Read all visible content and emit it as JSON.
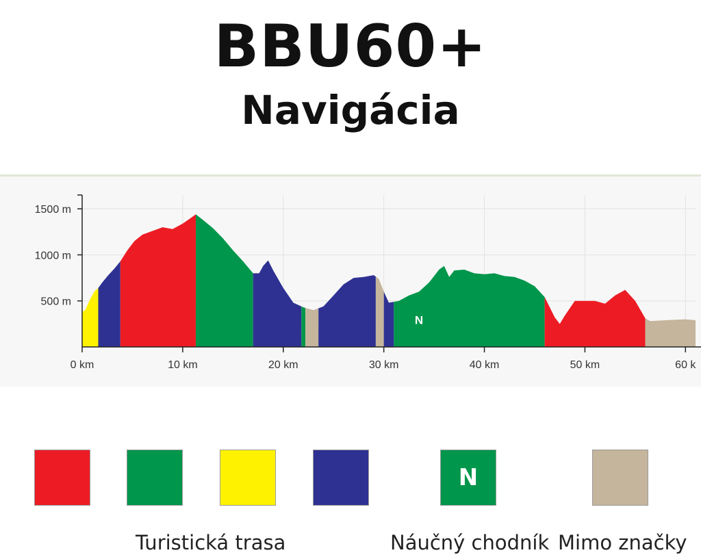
{
  "header": {
    "title": "BBU60+",
    "subtitle": "Navigácia"
  },
  "colors": {
    "red": "#ed1c24",
    "green": "#00964b",
    "yellow": "#fff200",
    "blue": "#2e3192",
    "tan": "#c4b59c"
  },
  "chart_data": {
    "type": "area",
    "xlabel": "",
    "ylabel": "",
    "x_ticks": [
      "0 km",
      "10 km",
      "20 km",
      "30 km",
      "40 km",
      "50 km",
      "60 k"
    ],
    "y_ticks": [
      "500 m",
      "1000 m",
      "1500 m"
    ],
    "xlim": [
      0,
      61
    ],
    "ylim": [
      0,
      1650
    ],
    "grid": true,
    "profile": [
      [
        0,
        380
      ],
      [
        0.3,
        400
      ],
      [
        0.8,
        520
      ],
      [
        1.2,
        600
      ],
      [
        1.6,
        640
      ],
      [
        2.0,
        700
      ],
      [
        2.6,
        780
      ],
      [
        3.2,
        850
      ],
      [
        3.8,
        930
      ],
      [
        4.5,
        1050
      ],
      [
        5.2,
        1150
      ],
      [
        6.0,
        1220
      ],
      [
        7.0,
        1260
      ],
      [
        8.0,
        1300
      ],
      [
        9.0,
        1280
      ],
      [
        10.0,
        1340
      ],
      [
        10.8,
        1400
      ],
      [
        11.3,
        1440
      ],
      [
        12.0,
        1380
      ],
      [
        13.0,
        1290
      ],
      [
        14.0,
        1180
      ],
      [
        15.0,
        1050
      ],
      [
        16.0,
        930
      ],
      [
        17.0,
        800
      ],
      [
        17.6,
        800
      ],
      [
        18.0,
        880
      ],
      [
        18.5,
        940
      ],
      [
        19.0,
        830
      ],
      [
        20.0,
        640
      ],
      [
        21.0,
        480
      ],
      [
        22.0,
        430
      ],
      [
        23.0,
        400
      ],
      [
        24.0,
        440
      ],
      [
        25.0,
        560
      ],
      [
        26.0,
        680
      ],
      [
        27.0,
        750
      ],
      [
        28.0,
        760
      ],
      [
        29.0,
        780
      ],
      [
        29.5,
        740
      ],
      [
        30.0,
        600
      ],
      [
        30.5,
        480
      ],
      [
        31.5,
        500
      ],
      [
        32.5,
        560
      ],
      [
        33.5,
        600
      ],
      [
        34.5,
        700
      ],
      [
        35.5,
        840
      ],
      [
        36.0,
        880
      ],
      [
        36.5,
        760
      ],
      [
        37.0,
        830
      ],
      [
        38.0,
        840
      ],
      [
        39.0,
        800
      ],
      [
        40.0,
        790
      ],
      [
        41.0,
        800
      ],
      [
        42.0,
        770
      ],
      [
        43.0,
        760
      ],
      [
        44.0,
        720
      ],
      [
        45.0,
        660
      ],
      [
        46.0,
        540
      ],
      [
        47.0,
        320
      ],
      [
        47.5,
        250
      ],
      [
        48.0,
        340
      ],
      [
        49.0,
        500
      ],
      [
        50.0,
        500
      ],
      [
        51.0,
        500
      ],
      [
        52.0,
        470
      ],
      [
        53.0,
        560
      ],
      [
        54.0,
        620
      ],
      [
        55.0,
        500
      ],
      [
        56.0,
        310
      ],
      [
        56.5,
        280
      ],
      [
        58.0,
        290
      ],
      [
        60.0,
        300
      ],
      [
        61.0,
        290
      ]
    ],
    "segments": [
      {
        "from": 0,
        "to": 1.6,
        "color": "yellow"
      },
      {
        "from": 1.6,
        "to": 3.8,
        "color": "blue"
      },
      {
        "from": 3.8,
        "to": 11.3,
        "color": "red"
      },
      {
        "from": 11.3,
        "to": 17.0,
        "color": "green"
      },
      {
        "from": 17.0,
        "to": 21.8,
        "color": "blue"
      },
      {
        "from": 21.8,
        "to": 22.2,
        "color": "green"
      },
      {
        "from": 22.2,
        "to": 23.5,
        "color": "tan"
      },
      {
        "from": 23.5,
        "to": 29.2,
        "color": "blue"
      },
      {
        "from": 29.2,
        "to": 30.0,
        "color": "tan"
      },
      {
        "from": 30.0,
        "to": 31.0,
        "color": "blue"
      },
      {
        "from": 31.0,
        "to": 46.0,
        "color": "green"
      },
      {
        "from": 46.0,
        "to": 56.0,
        "color": "red"
      },
      {
        "from": 56.0,
        "to": 61.0,
        "color": "tan"
      }
    ],
    "annotations": [
      {
        "text": "N",
        "x": 33.5,
        "y": 250
      }
    ]
  },
  "legend": {
    "swatches": [
      {
        "color": "red",
        "letter": ""
      },
      {
        "color": "green",
        "letter": ""
      },
      {
        "color": "yellow",
        "letter": ""
      },
      {
        "color": "blue",
        "letter": ""
      },
      {
        "color": "green",
        "letter": "N"
      },
      {
        "color": "tan",
        "letter": ""
      }
    ],
    "labels": {
      "tourist": "Turistická trasa",
      "educational": "Náučný chodník",
      "unmarked": "Mimo značky"
    }
  }
}
